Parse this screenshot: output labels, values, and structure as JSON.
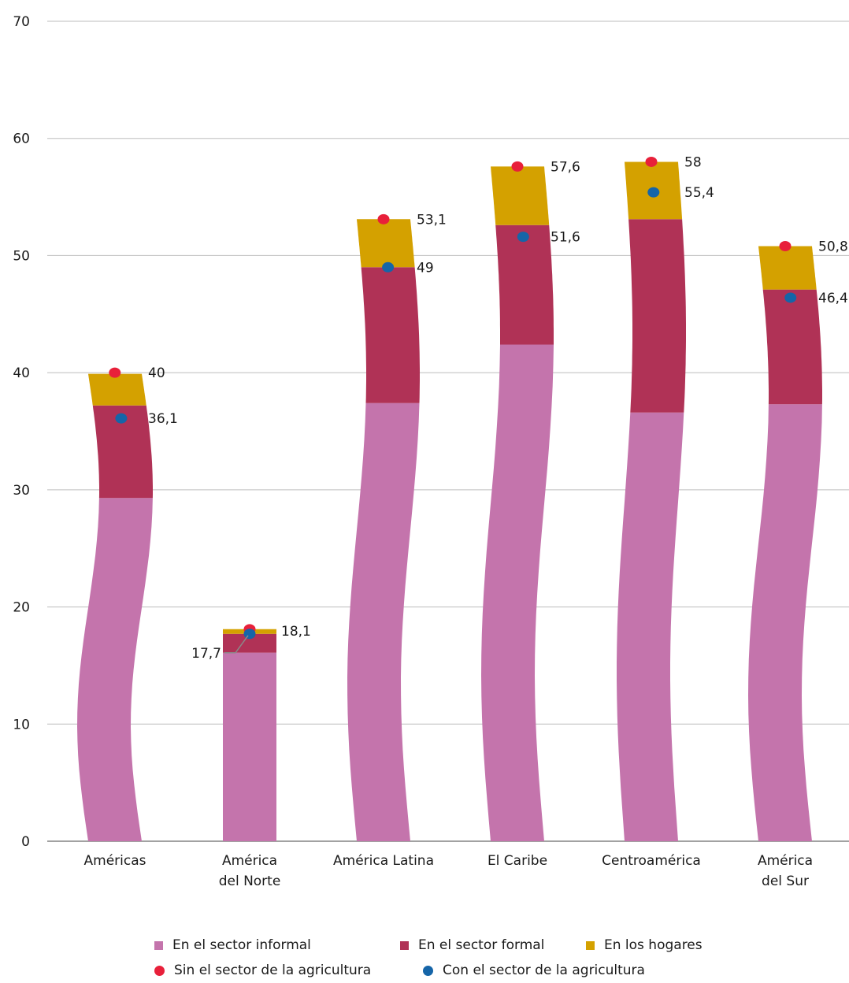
{
  "chart_data": {
    "type": "bar",
    "stacked": true,
    "categories": [
      [
        "Américas"
      ],
      [
        "América",
        "del Norte"
      ],
      [
        "América Latina"
      ],
      [
        "El Caribe"
      ],
      [
        "Centroamérica"
      ],
      [
        "América",
        "del Sur"
      ]
    ],
    "series": [
      {
        "name": "En el sector informal",
        "color": "#c474ac",
        "values": [
          29.3,
          16.1,
          37.4,
          42.4,
          36.6,
          37.3
        ]
      },
      {
        "name": "En el sector formal",
        "color": "#b03256",
        "values": [
          7.9,
          1.6,
          11.6,
          10.2,
          16.5,
          9.8
        ]
      },
      {
        "name": "En los hogares",
        "color": "#d4a100",
        "values": [
          2.7,
          0.4,
          4.1,
          5.0,
          4.9,
          3.7
        ]
      }
    ],
    "markers": [
      {
        "name": "Sin el sector de la agricultura",
        "color": "#e8203a",
        "values": [
          40,
          18.1,
          53.1,
          57.6,
          58,
          50.8
        ],
        "labels": [
          "40",
          "18,1",
          "53,1",
          "57,6",
          "58",
          "50,8"
        ]
      },
      {
        "name": "Con el sector de la agricultura",
        "color": "#1565a8",
        "values": [
          36.1,
          17.7,
          49,
          51.6,
          55.4,
          46.4
        ],
        "labels": [
          "36,1",
          "17,7",
          "49",
          "51,6",
          "55,4",
          "46,4"
        ]
      }
    ],
    "yticks": [
      "0",
      "10",
      "20",
      "30",
      "40",
      "50",
      "60",
      "70"
    ],
    "ylim": [
      0,
      70
    ],
    "grid": true,
    "legend_position": "bottom"
  },
  "legend": {
    "informal": "En el sector informal",
    "formal": "En el sector formal",
    "hogares": "En los hogares",
    "sin_agri": "Sin el sector de la agricultura",
    "con_agri": "Con el sector de la agricultura"
  }
}
